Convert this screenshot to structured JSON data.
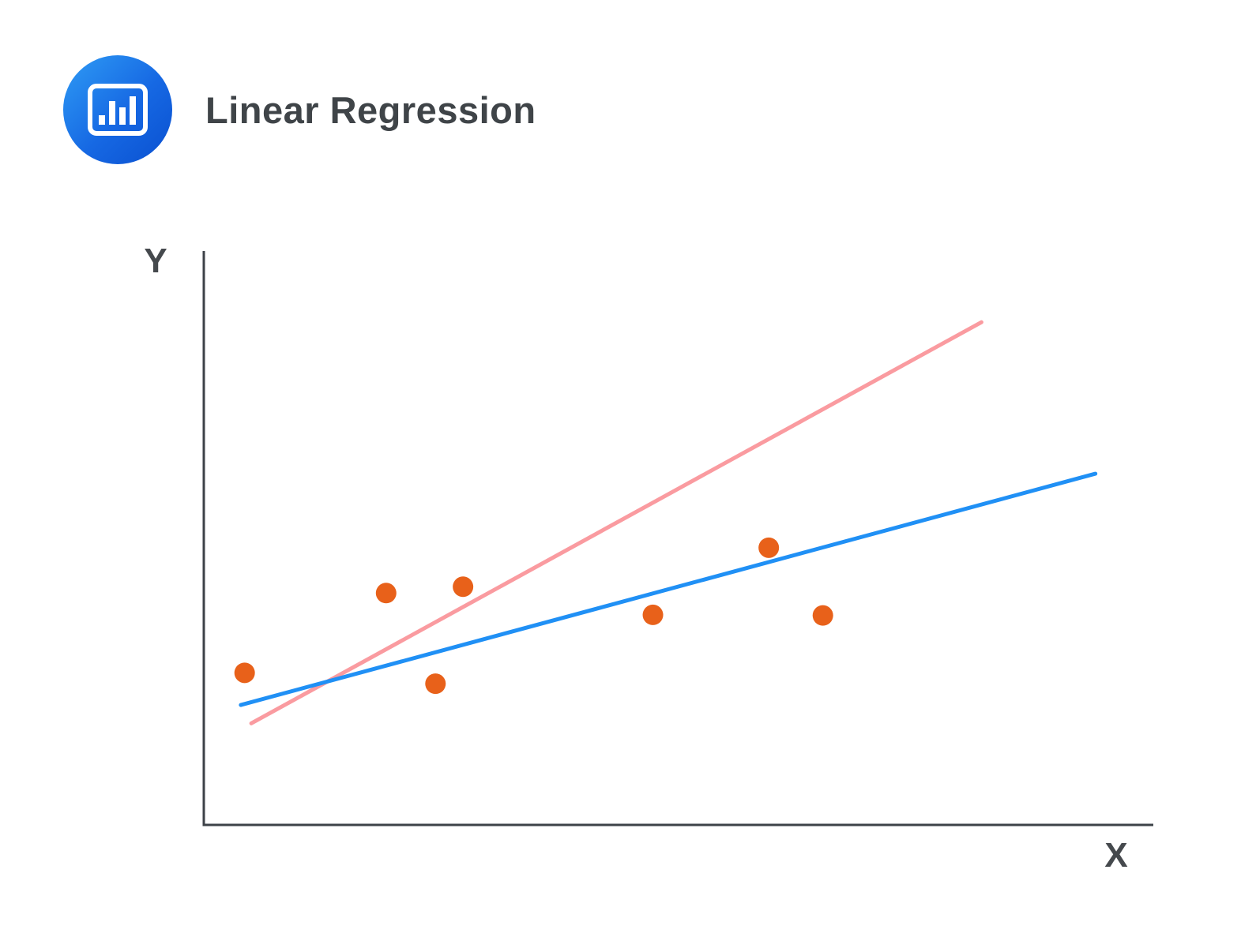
{
  "header": {
    "title": "Linear Regression",
    "icon": "bar-chart-icon"
  },
  "colors": {
    "icon_gradient_start": "#2F9CF5",
    "icon_gradient_end": "#0A50D0",
    "title": "#3F4448",
    "axis": "#3D4248",
    "axis_label": "#45494D",
    "point": "#E8611A",
    "regression_line": "#2090F5",
    "steep_line": "#FA9BA0"
  },
  "chart_data": {
    "type": "scatter",
    "title": "Linear Regression",
    "xlabel": "X",
    "ylabel": "Y",
    "xlim": [
      0,
      100
    ],
    "ylim": [
      0,
      100
    ],
    "grid": false,
    "legend": "none",
    "points": [
      {
        "x": 4.3,
        "y": 26.5
      },
      {
        "x": 19.2,
        "y": 40.4
      },
      {
        "x": 24.4,
        "y": 24.6
      },
      {
        "x": 27.3,
        "y": 41.5
      },
      {
        "x": 47.3,
        "y": 36.6
      },
      {
        "x": 59.5,
        "y": 48.3
      },
      {
        "x": 65.2,
        "y": 36.5
      }
    ],
    "lines": [
      {
        "name": "steep-line",
        "color_key": "steep_line",
        "from": {
          "x": 5.0,
          "y": 17.7
        },
        "to": {
          "x": 81.9,
          "y": 87.6
        }
      },
      {
        "name": "regression-line",
        "color_key": "regression_line",
        "from": {
          "x": 3.9,
          "y": 20.9
        },
        "to": {
          "x": 93.9,
          "y": 61.2
        }
      }
    ]
  }
}
